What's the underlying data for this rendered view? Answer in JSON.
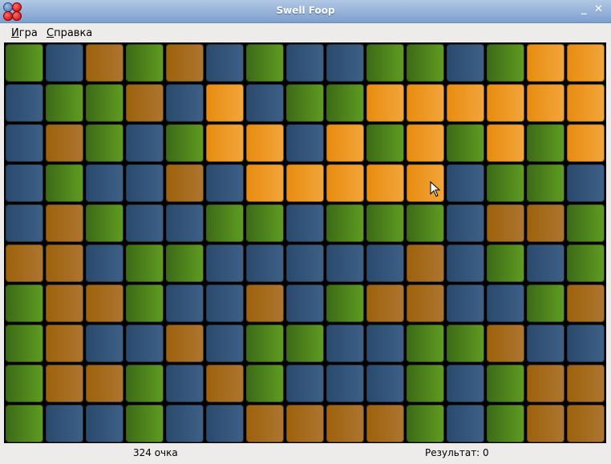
{
  "window": {
    "title": "Swell Foop",
    "minimize_icon": "minimize-icon",
    "close_icon": "close-icon"
  },
  "menu": {
    "items": [
      {
        "label": "Игра"
      },
      {
        "label": "Справка"
      }
    ]
  },
  "board": {
    "columns": 15,
    "rows": 10,
    "legend": {
      "G": "green",
      "B": "blue",
      "R": "brown",
      "O": "brown (highlighted selection)"
    },
    "colors": {
      "G": "#4f8a1c",
      "B": "#34557a",
      "R": "#a66b1e",
      "O": "#ee9a25"
    },
    "grid": [
      "GBRGRBGBBGGBGOO",
      "BGGRBOBGGOOOOOO",
      "BRGBGOOBOGOGOGO",
      "BGBBRBOOOOOBGGB",
      "BRGBBGGBGGGBRRG",
      "RRBGGBBBBBRBGBG",
      "GRRGBBRBGRRBBGR",
      "GRBBRBGGBBGGRBB",
      "GRRGBRGBBBGBGRR",
      "GBBGBBRRRRGBGRR"
    ]
  },
  "status": {
    "selection": "324 очка",
    "score": "Результат: 0"
  }
}
